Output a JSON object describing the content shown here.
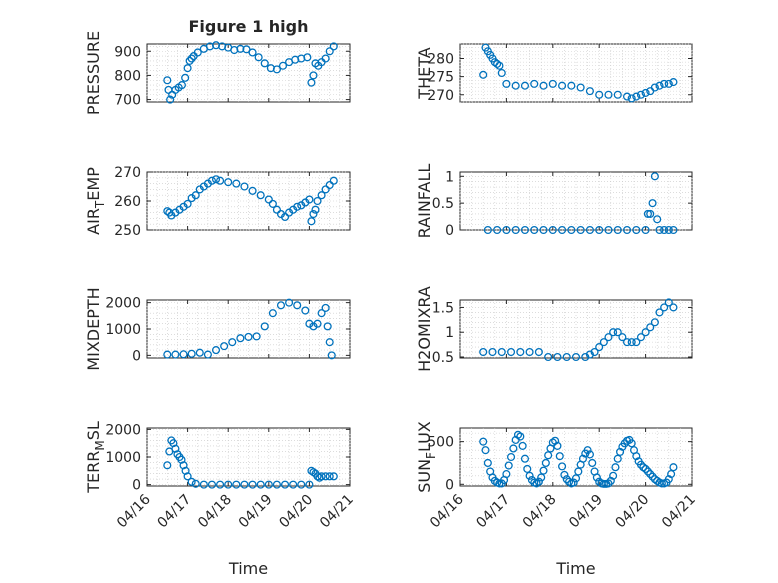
{
  "figure": {
    "title": "Figure 1 high",
    "marker_color": "#0072BD",
    "marker": "circle"
  },
  "chart_data": [
    {
      "type": "scatter",
      "title": "Figure 1 high",
      "xlabel": "",
      "ylabel": "PRESSURE",
      "xlim": [
        "04/16",
        "04/21"
      ],
      "ylim": [
        690,
        930
      ],
      "yticks": [
        700,
        800,
        900
      ],
      "xticks": [
        "04/16",
        "04/17",
        "04/18",
        "04/19",
        "04/20",
        "04/21"
      ],
      "x": [
        0.5,
        0.53,
        0.57,
        0.62,
        0.7,
        0.78,
        0.86,
        0.94,
        1.0,
        1.05,
        1.1,
        1.15,
        1.25,
        1.4,
        1.55,
        1.7,
        1.85,
        2.0,
        2.15,
        2.3,
        2.45,
        2.6,
        2.75,
        2.9,
        3.05,
        3.2,
        3.35,
        3.5,
        3.65,
        3.8,
        3.95,
        4.05,
        4.1,
        4.15,
        4.22,
        4.3,
        4.4,
        4.5,
        4.6
      ],
      "y": [
        780,
        740,
        700,
        720,
        740,
        750,
        760,
        790,
        830,
        860,
        870,
        880,
        895,
        910,
        920,
        925,
        920,
        915,
        905,
        910,
        908,
        895,
        875,
        850,
        830,
        825,
        840,
        855,
        865,
        870,
        875,
        770,
        800,
        850,
        840,
        855,
        870,
        900,
        920
      ],
      "grid": true,
      "series": [
        {
          "name": "",
          "color": "#0072BD"
        }
      ]
    },
    {
      "type": "scatter",
      "xlabel": "",
      "ylabel": "THETA",
      "xlim": [
        "04/16",
        "04/21"
      ],
      "ylim": [
        268,
        284
      ],
      "yticks": [
        270,
        275,
        280
      ],
      "xticks": [
        "04/16",
        "04/17",
        "04/18",
        "04/19",
        "04/20",
        "04/21"
      ],
      "x": [
        0.5,
        0.55,
        0.6,
        0.65,
        0.7,
        0.75,
        0.8,
        0.85,
        0.9,
        1.0,
        1.2,
        1.4,
        1.6,
        1.8,
        2.0,
        2.2,
        2.4,
        2.6,
        2.8,
        3.0,
        3.2,
        3.4,
        3.6,
        3.7,
        3.8,
        3.9,
        4.0,
        4.1,
        4.2,
        4.3,
        4.4,
        4.5,
        4.6
      ],
      "y": [
        275.5,
        283,
        282,
        281,
        280,
        279,
        278.5,
        278,
        276,
        273,
        272.5,
        272.5,
        273,
        272.5,
        273,
        272.5,
        272.5,
        272,
        271,
        270,
        270,
        270,
        269.5,
        269,
        269.5,
        270,
        270.5,
        271,
        272,
        272.5,
        273,
        273,
        273.5
      ],
      "grid": true,
      "series": [
        {
          "name": "",
          "color": "#0072BD"
        }
      ]
    },
    {
      "type": "scatter",
      "xlabel": "",
      "ylabel": "AIR_TEMP",
      "ylabel_display": [
        "AIR",
        "T",
        "EMP"
      ],
      "xlim": [
        "04/16",
        "04/21"
      ],
      "ylim": [
        250,
        270
      ],
      "yticks": [
        250,
        260,
        270
      ],
      "xticks": [
        "04/16",
        "04/17",
        "04/18",
        "04/19",
        "04/20",
        "04/21"
      ],
      "x": [
        0.5,
        0.55,
        0.6,
        0.7,
        0.8,
        0.9,
        1.0,
        1.1,
        1.2,
        1.3,
        1.4,
        1.5,
        1.6,
        1.7,
        1.8,
        2.0,
        2.2,
        2.4,
        2.6,
        2.8,
        3.0,
        3.1,
        3.2,
        3.3,
        3.4,
        3.5,
        3.6,
        3.7,
        3.8,
        3.9,
        4.0,
        4.05,
        4.1,
        4.15,
        4.2,
        4.3,
        4.4,
        4.5,
        4.6
      ],
      "y": [
        256.5,
        256,
        255,
        256,
        257,
        258,
        259,
        261,
        262,
        264,
        265,
        266,
        267,
        267.5,
        267,
        266.5,
        266,
        265,
        263.5,
        262,
        260.5,
        259,
        257,
        255.5,
        254.5,
        256,
        257,
        258,
        258.5,
        259.5,
        260.5,
        253,
        255.5,
        257,
        260,
        262,
        264,
        265.5,
        267
      ],
      "grid": true,
      "series": [
        {
          "name": "",
          "color": "#0072BD"
        }
      ]
    },
    {
      "type": "scatter",
      "xlabel": "",
      "ylabel": "RAINFALL",
      "xlim": [
        "04/16",
        "04/21"
      ],
      "ylim": [
        0,
        1.08
      ],
      "yticks": [
        0,
        0.5,
        1
      ],
      "xticks": [
        "04/16",
        "04/17",
        "04/18",
        "04/19",
        "04/20",
        "04/21"
      ],
      "x": [
        0.6,
        0.8,
        1.0,
        1.2,
        1.4,
        1.6,
        1.8,
        2.0,
        2.2,
        2.4,
        2.6,
        2.8,
        3.0,
        3.2,
        3.4,
        3.6,
        3.8,
        4.0,
        4.05,
        4.1,
        4.15,
        4.2,
        4.25,
        4.3,
        4.4,
        4.5,
        4.6
      ],
      "y": [
        0,
        0,
        0,
        0,
        0,
        0,
        0,
        0,
        0,
        0,
        0,
        0,
        0,
        0,
        0,
        0,
        0,
        0,
        0.3,
        0.3,
        0.5,
        1.0,
        0.2,
        0,
        0,
        0,
        0
      ],
      "grid": true,
      "series": [
        {
          "name": "",
          "color": "#0072BD"
        }
      ]
    },
    {
      "type": "scatter",
      "xlabel": "",
      "ylabel": "MIXDEPTH",
      "xlim": [
        "04/16",
        "04/21"
      ],
      "ylim": [
        -100,
        2100
      ],
      "yticks": [
        0,
        1000,
        2000
      ],
      "xticks": [
        "04/16",
        "04/17",
        "04/18",
        "04/19",
        "04/20",
        "04/21"
      ],
      "x": [
        0.5,
        0.7,
        0.9,
        1.1,
        1.3,
        1.5,
        1.7,
        1.9,
        2.1,
        2.3,
        2.5,
        2.7,
        2.9,
        3.1,
        3.3,
        3.5,
        3.7,
        3.9,
        4.0,
        4.1,
        4.2,
        4.3,
        4.4,
        4.45,
        4.5,
        4.55
      ],
      "y": [
        30,
        30,
        40,
        60,
        100,
        30,
        200,
        350,
        500,
        650,
        700,
        720,
        1100,
        1600,
        1900,
        2000,
        1900,
        1700,
        1200,
        1100,
        1200,
        1600,
        1800,
        1100,
        500,
        0
      ],
      "grid": true,
      "series": [
        {
          "name": "",
          "color": "#0072BD"
        }
      ]
    },
    {
      "type": "scatter",
      "xlabel": "",
      "ylabel": "H2OMIXRA",
      "xlim": [
        "04/16",
        "04/21"
      ],
      "ylim": [
        0.48,
        1.65
      ],
      "yticks": [
        0.5,
        1,
        1.5
      ],
      "xticks": [
        "04/16",
        "04/17",
        "04/18",
        "04/19",
        "04/20",
        "04/21"
      ],
      "x": [
        0.5,
        0.7,
        0.9,
        1.1,
        1.3,
        1.5,
        1.7,
        1.9,
        2.1,
        2.3,
        2.5,
        2.7,
        2.8,
        2.9,
        3.0,
        3.1,
        3.2,
        3.3,
        3.4,
        3.5,
        3.6,
        3.7,
        3.8,
        3.9,
        4.0,
        4.1,
        4.2,
        4.3,
        4.4,
        4.5,
        4.6
      ],
      "y": [
        0.6,
        0.6,
        0.6,
        0.6,
        0.6,
        0.6,
        0.6,
        0.5,
        0.5,
        0.5,
        0.5,
        0.5,
        0.55,
        0.6,
        0.7,
        0.8,
        0.9,
        1.0,
        1.0,
        0.9,
        0.8,
        0.8,
        0.8,
        0.9,
        1.0,
        1.1,
        1.2,
        1.4,
        1.5,
        1.6,
        1.5
      ],
      "grid": true,
      "series": [
        {
          "name": "",
          "color": "#0072BD"
        }
      ]
    },
    {
      "type": "scatter",
      "xlabel": "Time",
      "ylabel": "TERR_MSL",
      "ylabel_display": [
        "TERR",
        "M",
        "SL"
      ],
      "xlim": [
        "04/16",
        "04/21"
      ],
      "ylim": [
        -50,
        2050
      ],
      "yticks": [
        0,
        1000,
        2000
      ],
      "xticks": [
        "04/16",
        "04/17",
        "04/18",
        "04/19",
        "04/20",
        "04/21"
      ],
      "x": [
        0.5,
        0.55,
        0.6,
        0.65,
        0.7,
        0.75,
        0.8,
        0.85,
        0.9,
        0.95,
        1.0,
        1.1,
        1.2,
        1.4,
        1.6,
        1.8,
        2.0,
        2.2,
        2.4,
        2.6,
        2.8,
        3.0,
        3.2,
        3.4,
        3.6,
        3.8,
        4.0,
        4.05,
        4.1,
        4.15,
        4.2,
        4.25,
        4.3,
        4.4,
        4.5,
        4.6
      ],
      "y": [
        700,
        1200,
        1600,
        1500,
        1300,
        1100,
        1000,
        900,
        700,
        500,
        300,
        100,
        30,
        0,
        0,
        0,
        0,
        0,
        0,
        0,
        0,
        0,
        0,
        0,
        0,
        0,
        0,
        500,
        450,
        400,
        300,
        250,
        300,
        300,
        300,
        300
      ],
      "grid": true,
      "series": [
        {
          "name": "",
          "color": "#0072BD"
        }
      ]
    },
    {
      "type": "scatter",
      "xlabel": "Time",
      "ylabel": "SUN_FLUX",
      "ylabel_display": [
        "SUN",
        "F",
        "LUX"
      ],
      "xlim": [
        "04/16",
        "04/21"
      ],
      "ylim": [
        -20,
        660
      ],
      "yticks": [
        0,
        500
      ],
      "xticks": [
        "04/16",
        "04/17",
        "04/18",
        "04/19",
        "04/20",
        "04/21"
      ],
      "x": [
        0.5,
        0.55,
        0.6,
        0.65,
        0.7,
        0.75,
        0.8,
        0.85,
        0.9,
        0.95,
        1.0,
        1.05,
        1.1,
        1.15,
        1.2,
        1.25,
        1.3,
        1.35,
        1.4,
        1.45,
        1.5,
        1.55,
        1.6,
        1.65,
        1.7,
        1.75,
        1.8,
        1.85,
        1.9,
        1.95,
        2.0,
        2.05,
        2.1,
        2.15,
        2.2,
        2.25,
        2.3,
        2.35,
        2.4,
        2.45,
        2.5,
        2.55,
        2.6,
        2.65,
        2.7,
        2.75,
        2.8,
        2.85,
        2.9,
        2.95,
        3.0,
        3.05,
        3.1,
        3.15,
        3.2,
        3.25,
        3.3,
        3.35,
        3.4,
        3.45,
        3.5,
        3.55,
        3.6,
        3.65,
        3.7,
        3.75,
        3.8,
        3.85,
        3.9,
        3.95,
        4.0,
        4.05,
        4.1,
        4.15,
        4.2,
        4.25,
        4.3,
        4.35,
        4.4,
        4.45,
        4.5,
        4.55,
        4.6
      ],
      "y": [
        500,
        400,
        250,
        150,
        80,
        40,
        20,
        10,
        10,
        50,
        120,
        220,
        320,
        420,
        520,
        580,
        560,
        450,
        300,
        180,
        100,
        50,
        20,
        10,
        30,
        80,
        160,
        250,
        340,
        420,
        490,
        510,
        450,
        330,
        210,
        110,
        60,
        30,
        10,
        20,
        70,
        150,
        230,
        300,
        360,
        400,
        350,
        250,
        150,
        80,
        30,
        10,
        5,
        5,
        10,
        40,
        100,
        200,
        300,
        380,
        440,
        480,
        510,
        520,
        480,
        400,
        330,
        270,
        230,
        200,
        180,
        150,
        120,
        90,
        60,
        40,
        20,
        10,
        10,
        20,
        60,
        120,
        200
      ],
      "grid": true,
      "series": [
        {
          "name": "",
          "color": "#0072BD"
        }
      ]
    }
  ]
}
